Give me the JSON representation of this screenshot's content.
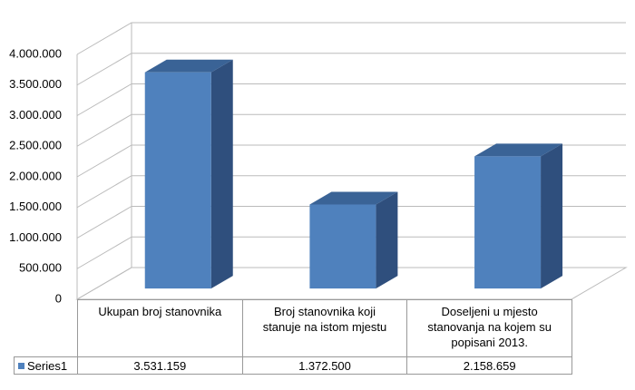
{
  "chart_data": {
    "type": "bar3d",
    "categories": [
      "Ukupan broj stanovnika",
      "Broj stanovnika koji stanuje na istom mjestu",
      "Doseljeni u mjesto stanovanja na kojem su popisani 2013."
    ],
    "series": [
      {
        "name": "Series1",
        "color": "#4f81bd",
        "values": [
          3531159,
          1372500,
          2158659
        ],
        "value_labels": [
          "3.531.159",
          "1.372.500",
          "2.158.659"
        ]
      }
    ],
    "ylim": [
      0,
      4000000
    ],
    "yticks": [
      0,
      {
        "value": 500000,
        "label": "500.000"
      },
      {
        "value": 1000000,
        "label": "1.000.000"
      },
      {
        "value": 1500000,
        "label": "1.500.000"
      },
      {
        "value": 2000000,
        "label": "2.000.000"
      },
      {
        "value": 2500000,
        "label": "2.500.000"
      },
      {
        "value": 3000000,
        "label": "3.000.000"
      },
      {
        "value": 3500000,
        "label": "3.500.000"
      },
      {
        "value": 4000000,
        "label": "4.000.000"
      }
    ],
    "grid": true
  }
}
